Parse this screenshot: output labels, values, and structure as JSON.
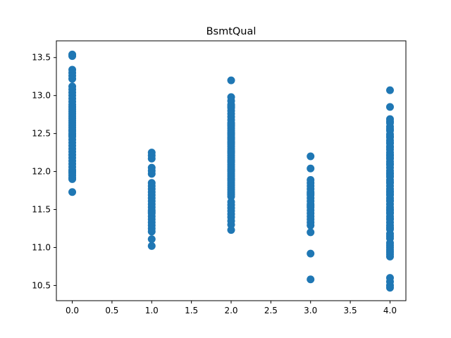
{
  "chart_data": {
    "type": "scatter",
    "title": "BsmtQual",
    "xlabel": "",
    "ylabel": "",
    "xlim": [
      -0.2,
      4.2
    ],
    "ylim": [
      10.3,
      13.72
    ],
    "xticks": [
      0.0,
      0.5,
      1.0,
      1.5,
      2.0,
      2.5,
      3.0,
      3.5,
      4.0
    ],
    "xtick_labels": [
      "0.0",
      "0.5",
      "1.0",
      "1.5",
      "2.0",
      "2.5",
      "3.0",
      "3.5",
      "4.0"
    ],
    "yticks": [
      10.5,
      11.0,
      11.5,
      12.0,
      12.5,
      13.0,
      13.5
    ],
    "ytick_labels": [
      "10.5",
      "11.0",
      "11.5",
      "12.0",
      "12.5",
      "13.0",
      "13.5"
    ],
    "grid": false,
    "marker_color": "#1f77b4",
    "series": [
      {
        "x": [
          0,
          0,
          0,
          0,
          0,
          0,
          0,
          0,
          0,
          0,
          0,
          0,
          0,
          0,
          0,
          0,
          0,
          0,
          0,
          0,
          0,
          0,
          0,
          0,
          0,
          0,
          0,
          0,
          0,
          0,
          0,
          0,
          0,
          0,
          0,
          0,
          0,
          0,
          0,
          0,
          0,
          0,
          0,
          0,
          0
        ],
        "y": [
          13.54,
          13.52,
          13.34,
          13.3,
          13.26,
          13.22,
          13.12,
          13.08,
          13.04,
          13.0,
          12.96,
          12.92,
          12.88,
          12.85,
          12.82,
          12.79,
          12.76,
          12.73,
          12.7,
          12.67,
          12.64,
          12.61,
          12.58,
          12.55,
          12.5,
          12.46,
          12.42,
          12.38,
          12.34,
          12.3,
          12.26,
          12.22,
          12.18,
          12.14,
          12.1,
          12.06,
          12.02,
          12.0,
          11.98,
          11.95,
          11.92,
          11.9,
          11.73,
          12.48,
          12.53
        ]
      },
      {
        "x": [
          1,
          1,
          1,
          1,
          1,
          1,
          1,
          1,
          1,
          1,
          1,
          1,
          1,
          1,
          1,
          1,
          1,
          1,
          1,
          1,
          1,
          1,
          1,
          1,
          1,
          1
        ],
        "y": [
          12.25,
          12.21,
          12.17,
          12.05,
          12.01,
          11.97,
          11.85,
          11.81,
          11.77,
          11.73,
          11.69,
          11.65,
          11.61,
          11.57,
          11.53,
          11.49,
          11.45,
          11.41,
          11.37,
          11.33,
          11.29,
          11.25,
          11.21,
          11.11,
          11.02,
          11.47
        ]
      },
      {
        "x": [
          2,
          2,
          2,
          2,
          2,
          2,
          2,
          2,
          2,
          2,
          2,
          2,
          2,
          2,
          2,
          2,
          2,
          2,
          2,
          2,
          2,
          2,
          2,
          2,
          2,
          2,
          2,
          2,
          2,
          2,
          2,
          2,
          2,
          2,
          2,
          2,
          2,
          2,
          2,
          2,
          2,
          2,
          2,
          2,
          2,
          2,
          2,
          2,
          2,
          2,
          2,
          2,
          2,
          2,
          2,
          2,
          2,
          2,
          2,
          2
        ],
        "y": [
          13.2,
          12.98,
          12.93,
          12.88,
          12.84,
          12.8,
          12.76,
          12.72,
          12.68,
          12.64,
          12.6,
          12.57,
          12.54,
          12.51,
          12.48,
          12.45,
          12.42,
          12.39,
          12.36,
          12.33,
          12.3,
          12.27,
          12.24,
          12.21,
          12.18,
          12.15,
          12.12,
          12.09,
          12.06,
          12.03,
          12.0,
          11.97,
          11.94,
          11.91,
          11.88,
          11.85,
          11.82,
          11.79,
          11.76,
          11.73,
          11.7,
          11.67,
          11.6,
          11.56,
          11.52,
          11.48,
          11.44,
          11.4,
          11.35,
          11.3,
          11.23,
          12.86,
          12.62,
          12.5,
          12.44,
          12.38,
          12.26,
          12.14,
          12.02,
          11.9
        ]
      },
      {
        "x": [
          3,
          3,
          3,
          3,
          3,
          3,
          3,
          3,
          3,
          3,
          3,
          3,
          3,
          3,
          3,
          3,
          3,
          3,
          3,
          3,
          3,
          3,
          3
        ],
        "y": [
          12.2,
          12.04,
          11.89,
          11.85,
          11.81,
          11.77,
          11.73,
          11.69,
          11.65,
          11.61,
          11.57,
          11.53,
          11.49,
          11.45,
          11.41,
          11.37,
          11.33,
          11.29,
          11.2,
          10.92,
          10.58,
          11.71,
          11.55
        ]
      },
      {
        "x": [
          4,
          4,
          4,
          4,
          4,
          4,
          4,
          4,
          4,
          4,
          4,
          4,
          4,
          4,
          4,
          4,
          4,
          4,
          4,
          4,
          4,
          4,
          4,
          4,
          4,
          4,
          4,
          4,
          4,
          4,
          4,
          4,
          4,
          4,
          4,
          4,
          4,
          4,
          4,
          4,
          4,
          4,
          4,
          4,
          4,
          4,
          4,
          4,
          4,
          4,
          4,
          4,
          4,
          4,
          4,
          4,
          4,
          4,
          4,
          4,
          4,
          4,
          4,
          4,
          4,
          4,
          4,
          4,
          4,
          4
        ],
        "y": [
          13.07,
          12.85,
          12.69,
          12.64,
          12.59,
          12.54,
          12.49,
          12.45,
          12.41,
          12.37,
          12.33,
          12.29,
          12.25,
          12.21,
          12.17,
          12.13,
          12.09,
          12.05,
          12.01,
          11.97,
          11.93,
          11.89,
          11.85,
          11.81,
          11.77,
          11.73,
          11.69,
          11.65,
          11.61,
          11.57,
          11.53,
          11.49,
          11.45,
          11.41,
          11.37,
          11.33,
          11.29,
          11.24,
          11.18,
          11.12,
          11.06,
          11.0,
          10.94,
          10.88,
          10.6,
          10.55,
          10.5,
          10.47,
          12.46,
          12.38,
          12.22,
          12.1,
          11.98,
          11.86,
          11.74,
          11.62,
          11.5,
          11.38,
          11.26,
          11.15,
          11.03,
          10.97,
          10.91,
          12.66,
          12.56,
          12.32,
          12.18,
          11.94,
          11.7,
          11.46
        ]
      }
    ]
  }
}
